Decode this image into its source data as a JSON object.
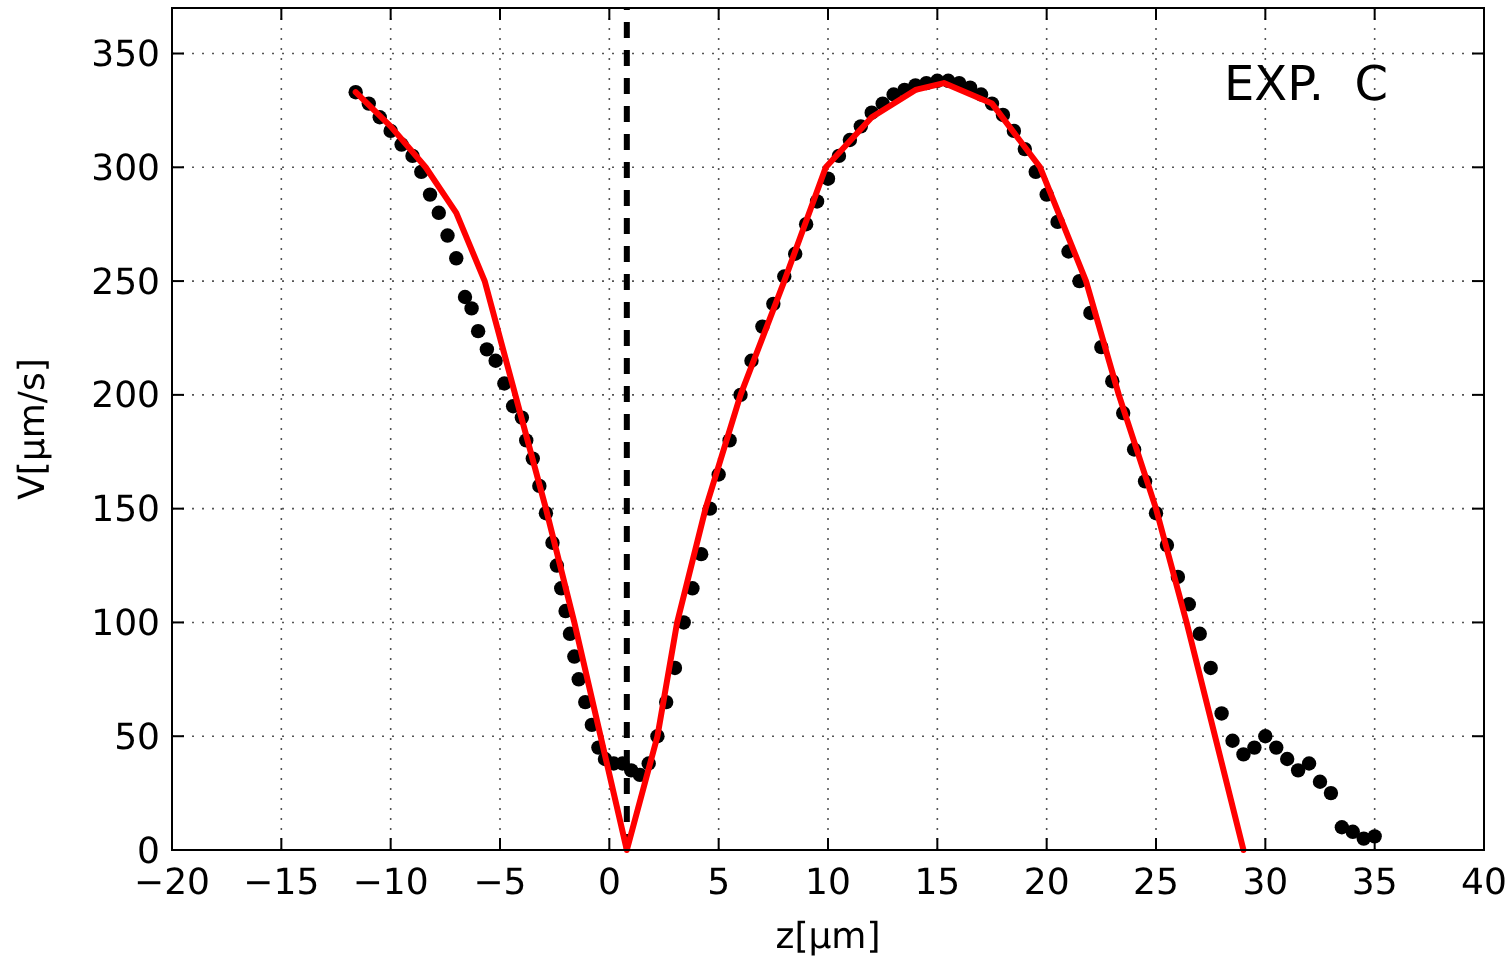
{
  "chart_data": {
    "type": "scatter",
    "xlabel": "z[µm]",
    "ylabel": "V[µm/s]",
    "annotations": [
      "EXP.  C"
    ],
    "xlim": [
      -20,
      40
    ],
    "ylim": [
      0,
      370
    ],
    "xticks": [
      -20,
      -15,
      -10,
      -5,
      0,
      5,
      10,
      15,
      20,
      25,
      30,
      35,
      40
    ],
    "yticks": [
      0,
      50,
      100,
      150,
      200,
      250,
      300,
      350
    ],
    "grid": true,
    "marker": "circle",
    "ref_lines": [
      {
        "axis": "x",
        "value": 0.8,
        "color": "#000000",
        "line_style": "dashed"
      }
    ],
    "series": [
      {
        "color": "#000000",
        "x": [
          -11.6,
          -11,
          -10.5,
          -10,
          -9.5,
          -9,
          -8.6,
          -8.2,
          -7.8,
          -7.4,
          -7,
          -6.6,
          -6.3,
          -6,
          -5.6,
          -5.2,
          -4.8,
          -4.4,
          -4,
          -3.8,
          -3.5,
          -3.2,
          -2.9,
          -2.6,
          -2.4,
          -2.2,
          -2,
          -1.8,
          -1.6,
          -1.4,
          -1.1,
          -0.8,
          -0.5,
          -0.2,
          0.2,
          0.6,
          1,
          1.4,
          1.8,
          2.2,
          2.6,
          3,
          3.4,
          3.8,
          4.2,
          4.6,
          5,
          5.5,
          6,
          6.5,
          7,
          7.5,
          8,
          8.5,
          9,
          9.5,
          10,
          10.5,
          11,
          11.5,
          12,
          12.5,
          13,
          13.5,
          14,
          14.5,
          15,
          15.5,
          16,
          16.5,
          17,
          17.5,
          18,
          18.5,
          19,
          19.5,
          20,
          20.5,
          21,
          21.5,
          22,
          22.5,
          23,
          23.5,
          24,
          24.5,
          25,
          25.5,
          26,
          26.5,
          27,
          27.5,
          28,
          28.5,
          29,
          29.5,
          30,
          30.5,
          31,
          31.5,
          32,
          32.5,
          33,
          33.5,
          34,
          34.5,
          35
        ],
        "values": [
          333,
          328,
          322,
          316,
          310,
          305,
          298,
          288,
          280,
          270,
          260,
          243,
          238,
          228,
          220,
          215,
          205,
          195,
          190,
          180,
          172,
          160,
          148,
          135,
          125,
          115,
          105,
          95,
          85,
          75,
          65,
          55,
          45,
          40,
          38,
          38,
          35,
          33,
          38,
          50,
          65,
          80,
          100,
          115,
          130,
          150,
          165,
          180,
          200,
          215,
          230,
          240,
          252,
          262,
          275,
          285,
          295,
          305,
          312,
          318,
          324,
          328,
          332,
          334,
          336,
          337,
          338,
          338,
          337,
          335,
          332,
          328,
          323,
          316,
          308,
          298,
          288,
          276,
          263,
          250,
          236,
          221,
          206,
          192,
          176,
          162,
          148,
          134,
          120,
          108,
          95,
          80,
          60,
          48,
          42,
          45,
          50,
          45,
          40,
          35,
          38,
          30,
          25,
          10,
          8,
          5,
          6
        ]
      },
      {
        "type": "line",
        "color": "#ff0000",
        "marker": "none",
        "line_style": "solid",
        "x": [
          -11.6,
          -10,
          -8.4,
          -7,
          -5.7,
          -4.3,
          -2.9,
          -1.6,
          -0.4,
          0.8,
          2.2,
          3.1,
          4.4,
          6,
          8,
          9.9,
          12,
          14,
          15.3,
          17.5,
          19.7,
          21.8,
          23.3,
          25,
          26.4,
          27.7,
          29
        ],
        "values": [
          333,
          318,
          300,
          280,
          250,
          200,
          150,
          100,
          50,
          0,
          50,
          100,
          150,
          200,
          250,
          300,
          322,
          334,
          337,
          328,
          300,
          250,
          200,
          150,
          100,
          50,
          0
        ]
      }
    ]
  }
}
